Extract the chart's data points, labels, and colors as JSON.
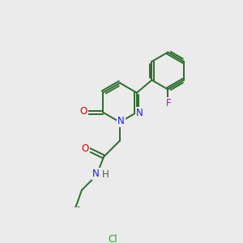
{
  "background_color": "#ebebeb",
  "bond_color": "#2d6b2d",
  "bond_width": 1.4,
  "atom_colors": {
    "N": "#1a1aff",
    "O": "#dd0000",
    "F": "#cc00cc",
    "Cl": "#22aa22",
    "H": "#555555"
  },
  "font_size": 8.5,
  "fig_size": [
    3.0,
    3.0
  ],
  "dpi": 100,
  "xlim": [
    0,
    10
  ],
  "ylim": [
    0,
    10
  ]
}
